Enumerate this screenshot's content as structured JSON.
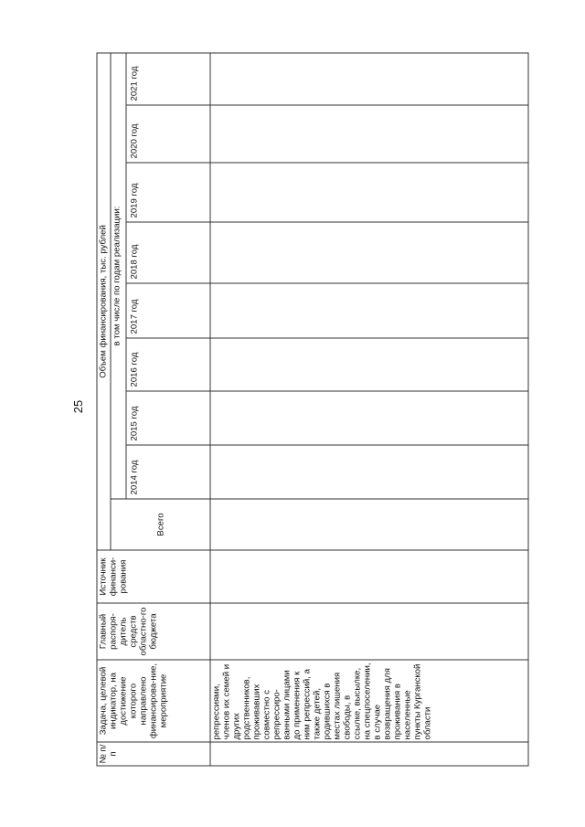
{
  "page_number": "25",
  "table": {
    "headers": {
      "num": "№ п/п",
      "task": "Задача, целевой индикатор, на достижение которого направлено финансирова-ние, мероприятие",
      "manager": "Главный распоря-дитель средств областно-го бюджета",
      "source": "Источник финанси-рования",
      "funding": "Объем финансирования, тыс. рублей",
      "total": "Всего",
      "by_years": "в том числе по годам реализации:",
      "years": [
        "2014 год",
        "2015 год",
        "2016 год",
        "2017 год",
        "2018 год",
        "2019 год",
        "2020 год",
        "2021 год"
      ]
    },
    "rows": [
      {
        "num": "",
        "task": "репрессиями, членов их семей и других родственников, проживавших совместно с репрессиро-ванными лицами до применения к ним репрессий, а также детей, родившихся в местах лишения свободы, в ссылке, высылке, на спецпоселении, в случае возвращения для проживания в населенные пункты Курганской области",
        "manager": "",
        "source": "",
        "total": "",
        "years": [
          "",
          "",
          "",
          "",
          "",
          "",
          "",
          ""
        ]
      }
    ]
  }
}
